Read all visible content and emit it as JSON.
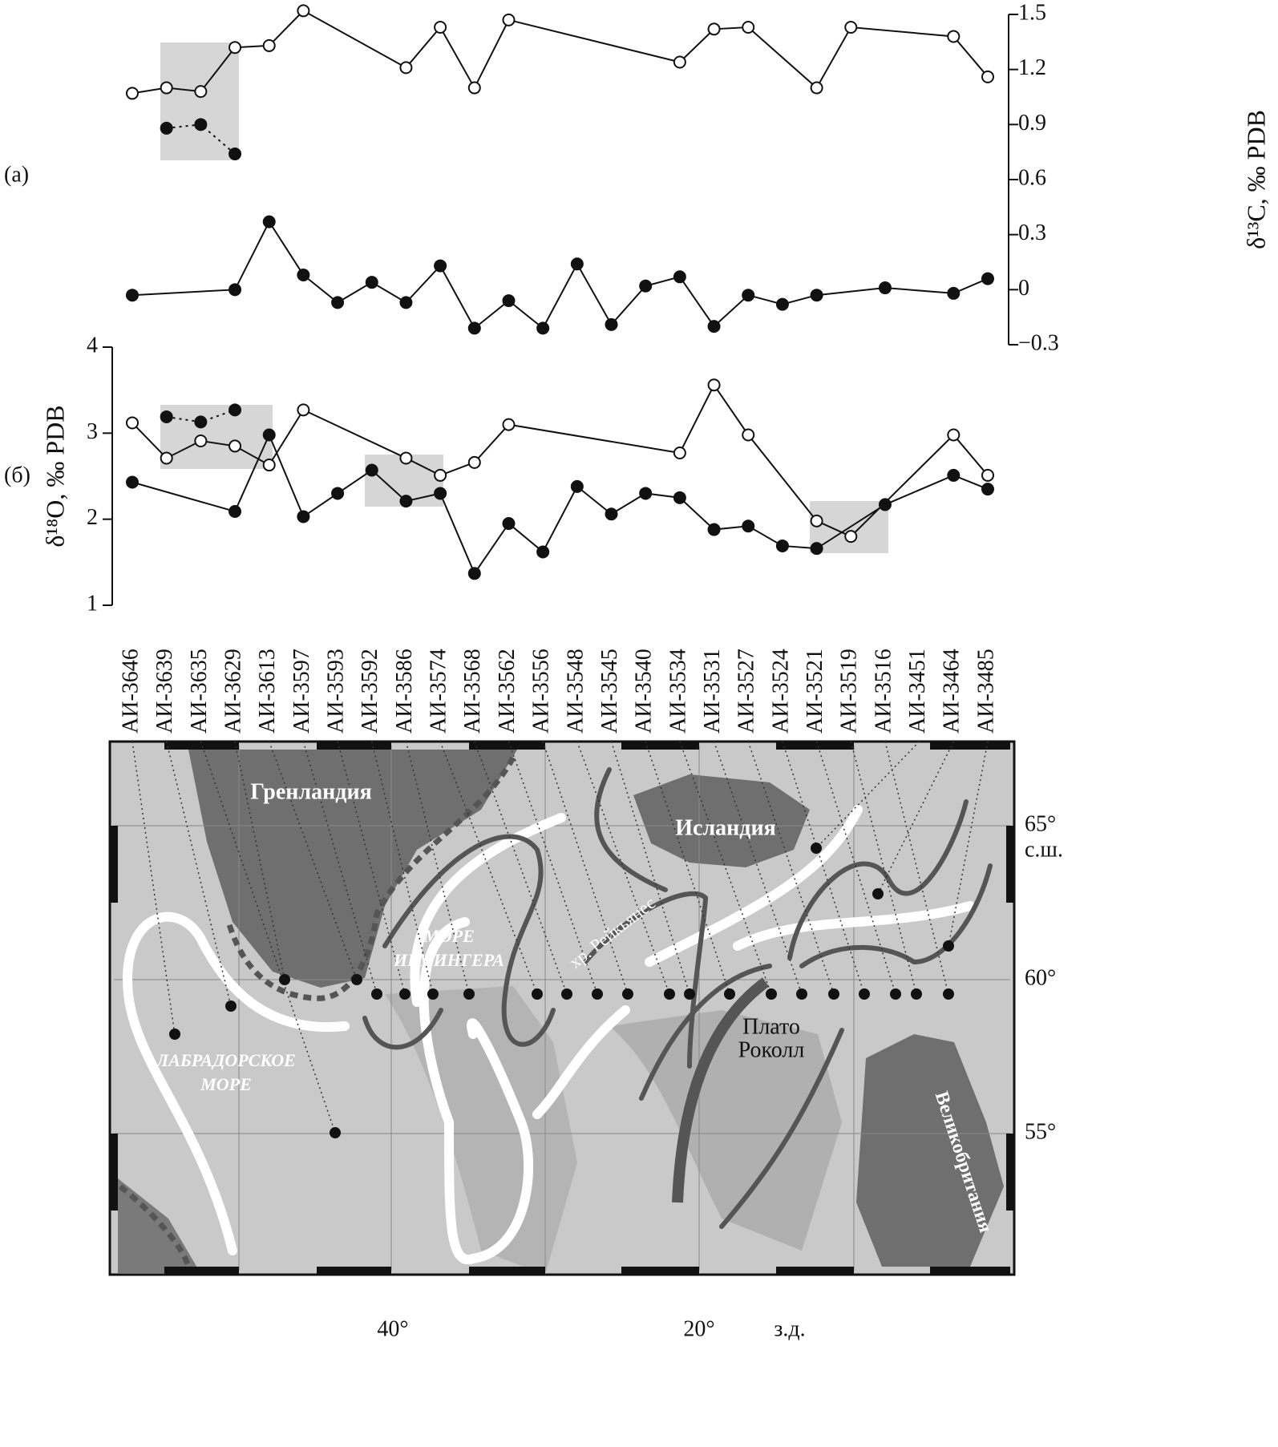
{
  "panel_labels": [
    "(а)",
    "(б)"
  ],
  "stations": [
    "АИ-3646",
    "АИ-3639",
    "АИ-3635",
    "АИ-3629",
    "АИ-3613",
    "АИ-3597",
    "АИ-3593",
    "АИ-3592",
    "АИ-3586",
    "АИ-3574",
    "АИ-3568",
    "АИ-3562",
    "АИ-3556",
    "АИ-3548",
    "АИ-3545",
    "АИ-3540",
    "АИ-3534",
    "АИ-3531",
    "АИ-3527",
    "АИ-3524",
    "АИ-3521",
    "АИ-3519",
    "АИ-3516",
    "АИ-3451",
    "АИ-3464",
    "АИ-3485"
  ],
  "chart_data": [
    {
      "type": "line",
      "ylabel": "δ¹³C, ‰ PDB",
      "axis_side": "right",
      "ylim": [
        -0.3,
        1.5
      ],
      "yticks": [
        {
          "value": -0.3,
          "label": "−0.3"
        },
        0,
        0.3,
        0.6,
        0.9,
        1.2,
        1.5
      ],
      "series": [
        {
          "marker": "open",
          "line": "solid",
          "color": "#111",
          "x": [
            "АИ-3646",
            "АИ-3639",
            "АИ-3635",
            "АИ-3629",
            "АИ-3613",
            "АИ-3597",
            "АИ-3586",
            "АИ-3574",
            "АИ-3568",
            "АИ-3562",
            "АИ-3534",
            "АИ-3531",
            "АИ-3527",
            "АИ-3521",
            "АИ-3519",
            "АИ-3464",
            "АИ-3485"
          ],
          "values": [
            1.07,
            1.1,
            1.08,
            1.32,
            1.33,
            1.52,
            1.21,
            1.43,
            1.1,
            1.47,
            1.24,
            1.42,
            1.43,
            1.1,
            1.43,
            1.38,
            1.16
          ]
        },
        {
          "marker": "filled",
          "line": "dotted",
          "color": "#111",
          "x": [
            "АИ-3639",
            "АИ-3635",
            "АИ-3629"
          ],
          "values": [
            0.88,
            0.9,
            0.74
          ]
        },
        {
          "marker": "filled",
          "line": "solid",
          "color": "#111",
          "x": [
            "АИ-3646",
            "АИ-3629",
            "АИ-3613",
            "АИ-3597",
            "АИ-3593",
            "АИ-3592",
            "АИ-3586",
            "АИ-3574",
            "АИ-3568",
            "АИ-3562",
            "АИ-3556",
            "АИ-3548",
            "АИ-3545",
            "АИ-3540",
            "АИ-3534",
            "АИ-3531",
            "АИ-3527",
            "АИ-3524",
            "АИ-3521",
            "АИ-3516",
            "АИ-3464",
            "АИ-3485"
          ],
          "values": [
            -0.03,
            0.0,
            0.37,
            0.08,
            -0.07,
            0.04,
            -0.07,
            0.13,
            -0.21,
            -0.06,
            -0.21,
            0.14,
            -0.19,
            0.02,
            0.07,
            -0.2,
            -0.03,
            -0.08,
            -0.03,
            0.01,
            -0.02,
            0.06
          ]
        }
      ]
    },
    {
      "type": "line",
      "ylabel": "δ¹⁸O, ‰ PDB",
      "axis_side": "left",
      "ylim": [
        1,
        4
      ],
      "yticks": [
        1,
        2,
        3,
        4
      ],
      "series": [
        {
          "marker": "open",
          "line": "solid",
          "color": "#111",
          "x": [
            "АИ-3646",
            "АИ-3639",
            "АИ-3635",
            "АИ-3629",
            "АИ-3613",
            "АИ-3597",
            "АИ-3586",
            "АИ-3574",
            "АИ-3568",
            "АИ-3562",
            "АИ-3534",
            "АИ-3531",
            "АИ-3527",
            "АИ-3521",
            "АИ-3519",
            "АИ-3464",
            "АИ-3485"
          ],
          "values": [
            3.12,
            2.71,
            2.91,
            2.85,
            2.63,
            3.27,
            2.71,
            2.51,
            2.66,
            3.1,
            2.77,
            3.56,
            2.98,
            1.98,
            1.8,
            2.98,
            2.51
          ]
        },
        {
          "marker": "filled",
          "line": "dotted",
          "color": "#111",
          "x": [
            "АИ-3639",
            "АИ-3635",
            "АИ-3629"
          ],
          "values": [
            3.19,
            3.13,
            3.27
          ]
        },
        {
          "marker": "filled",
          "line": "solid",
          "color": "#111",
          "x": [
            "АИ-3646",
            "АИ-3629",
            "АИ-3613",
            "АИ-3597",
            "АИ-3593",
            "АИ-3592",
            "АИ-3586",
            "АИ-3574",
            "АИ-3568",
            "АИ-3562",
            "АИ-3556",
            "АИ-3548",
            "АИ-3545",
            "АИ-3540",
            "АИ-3534",
            "АИ-3531",
            "АИ-3527",
            "АИ-3524",
            "АИ-3521",
            "АИ-3516",
            "АИ-3464",
            "АИ-3485"
          ],
          "values": [
            2.43,
            2.09,
            2.98,
            2.03,
            2.3,
            2.57,
            2.21,
            2.3,
            1.37,
            1.95,
            1.62,
            2.38,
            2.06,
            2.3,
            2.25,
            1.88,
            1.92,
            1.69,
            1.66,
            2.17,
            2.51,
            2.35
          ]
        }
      ]
    }
  ],
  "map": {
    "greenland": "Гренландия",
    "iceland": "Исландия",
    "irminger": [
      "МОРЕ",
      "ИРМИНГЕРА"
    ],
    "reykjanes": "хр. Рейкьянес",
    "rockall": [
      "Плато",
      "Роколл"
    ],
    "labrador": [
      "ЛАБРАДОРСКОЕ",
      "МОРЕ"
    ],
    "britain": "Великобритания",
    "lat_labels": [
      "65°",
      "с.ш.",
      "60°",
      "55°"
    ],
    "lon_labels": [
      "40°",
      "20°",
      "з.д."
    ]
  }
}
